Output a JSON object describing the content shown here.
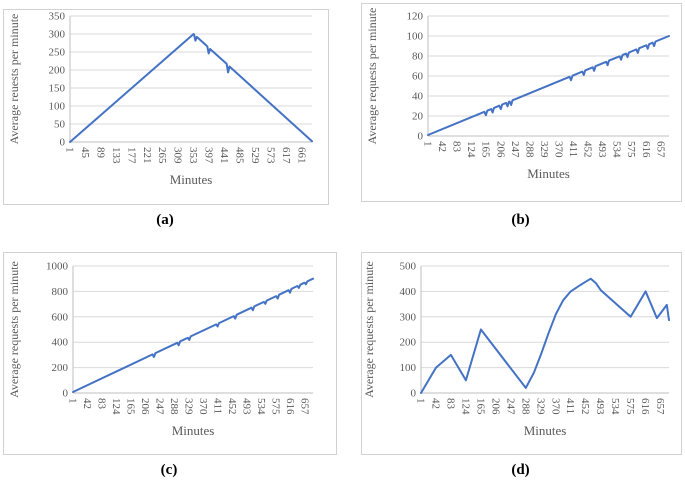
{
  "page": {
    "background": "#ffffff"
  },
  "colors": {
    "line": "#4472C4",
    "grid": "#D9D9D9",
    "axis": "#BFBFBF",
    "tick_text": "#595959",
    "axis_title_text": "#595959",
    "caption_text": "#000000",
    "panel_border": "#D2D2D2"
  },
  "chart_data": [
    {
      "id": "a",
      "type": "line",
      "caption": "(a)",
      "xlabel": "Minutes",
      "ylabel": "Average reuests per minute",
      "ylim": [
        0,
        350
      ],
      "ystep": 50,
      "yticks": [
        0,
        50,
        100,
        150,
        200,
        250,
        300,
        350
      ],
      "xticks": [
        1,
        45,
        89,
        133,
        177,
        221,
        265,
        309,
        353,
        397,
        441,
        485,
        529,
        573,
        617,
        661
      ],
      "x_data_max": 690,
      "grid": true,
      "legend": "none",
      "segments": [
        [
          1,
          0
        ],
        [
          353,
          300
        ],
        [
          690,
          2
        ]
      ],
      "notches": [
        [
          358,
          14
        ],
        [
          396,
          16
        ],
        [
          451,
          20
        ]
      ]
    },
    {
      "id": "b",
      "type": "line",
      "caption": "(b)",
      "xlabel": "Minutes",
      "ylabel": "Average requests per minute",
      "ylim": [
        0,
        120
      ],
      "ystep": 20,
      "yticks": [
        0,
        20,
        40,
        60,
        80,
        100,
        120
      ],
      "xticks": [
        1,
        42,
        83,
        124,
        165,
        206,
        247,
        288,
        329,
        370,
        411,
        452,
        493,
        534,
        575,
        616,
        657
      ],
      "x_data_max": 680,
      "grid": true,
      "legend": "none",
      "segments": [
        [
          1,
          1
        ],
        [
          680,
          100
        ]
      ],
      "notches": [
        [
          164,
          4
        ],
        [
          183,
          4
        ],
        [
          206,
          4
        ],
        [
          225,
          4
        ],
        [
          235,
          4
        ],
        [
          404,
          4
        ],
        [
          440,
          4
        ],
        [
          469,
          4
        ],
        [
          507,
          4
        ],
        [
          545,
          4
        ],
        [
          563,
          4
        ],
        [
          592,
          4
        ],
        [
          620,
          4
        ],
        [
          638,
          4
        ]
      ]
    },
    {
      "id": "c",
      "type": "line",
      "caption": "(c)",
      "xlabel": "Minutes",
      "ylabel": "Average requests per minute",
      "ylim": [
        0,
        1000
      ],
      "ystep": 200,
      "yticks": [
        0,
        200,
        400,
        600,
        800,
        1000
      ],
      "xticks": [
        1,
        42,
        83,
        124,
        165,
        206,
        247,
        288,
        329,
        370,
        411,
        452,
        493,
        534,
        575,
        616,
        657
      ],
      "x_data_max": 680,
      "grid": true,
      "legend": "none",
      "segments": [
        [
          1,
          8
        ],
        [
          680,
          900
        ]
      ],
      "notches": [
        [
          230,
          25
        ],
        [
          300,
          25
        ],
        [
          330,
          22
        ],
        [
          410,
          22
        ],
        [
          460,
          25
        ],
        [
          510,
          25
        ],
        [
          545,
          20
        ],
        [
          580,
          25
        ],
        [
          615,
          25
        ],
        [
          640,
          20
        ],
        [
          660,
          18
        ]
      ]
    },
    {
      "id": "d",
      "type": "line",
      "caption": "(d)",
      "xlabel": "Minutes",
      "ylabel": "Average requests per minute",
      "ylim": [
        0,
        500
      ],
      "ystep": 100,
      "yticks": [
        0,
        100,
        200,
        300,
        400,
        500
      ],
      "xticks": [
        1,
        42,
        83,
        124,
        165,
        206,
        247,
        288,
        329,
        370,
        411,
        452,
        493,
        534,
        575,
        616,
        657
      ],
      "x_data_max": 680,
      "grid": true,
      "legend": "none",
      "segments": [
        [
          1,
          0
        ],
        [
          42,
          100
        ],
        [
          83,
          150
        ],
        [
          124,
          50
        ],
        [
          165,
          250
        ],
        [
          288,
          20
        ],
        [
          310,
          80
        ],
        [
          329,
          150
        ],
        [
          350,
          235
        ],
        [
          370,
          310
        ],
        [
          390,
          365
        ],
        [
          411,
          400
        ],
        [
          432,
          420
        ],
        [
          452,
          438
        ],
        [
          466,
          450
        ],
        [
          480,
          432
        ],
        [
          493,
          405
        ],
        [
          575,
          300
        ],
        [
          616,
          400
        ],
        [
          647,
          295
        ],
        [
          674,
          347
        ],
        [
          680,
          287
        ]
      ],
      "notches": []
    }
  ]
}
